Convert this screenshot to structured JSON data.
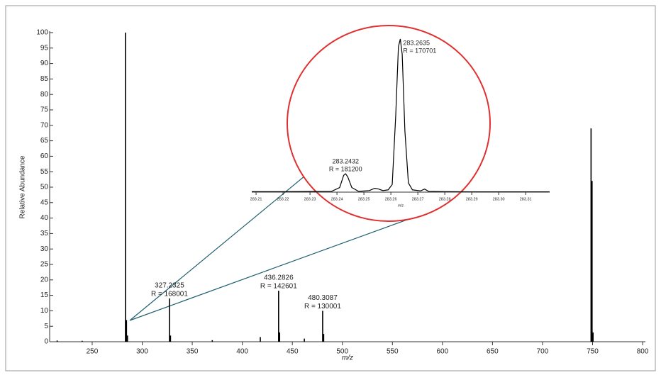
{
  "chart_data": [
    {
      "type": "stick",
      "xlabel": "m/z",
      "ylabel": "Relative Abundance",
      "xlim": [
        207.5,
        802.8
      ],
      "ylim": [
        0,
        100
      ],
      "xticks": [
        250,
        300,
        350,
        400,
        450,
        500,
        550,
        600,
        650,
        700,
        750,
        800
      ],
      "yticks": [
        0,
        5,
        10,
        15,
        20,
        25,
        30,
        35,
        40,
        45,
        50,
        55,
        60,
        65,
        70,
        75,
        80,
        85,
        90,
        95,
        100
      ],
      "color": "#000000",
      "x": [
        215,
        240,
        283.2635,
        284.27,
        285.27,
        327.2325,
        328.24,
        370,
        418,
        436.2826,
        437.29,
        462,
        480.3087,
        481.31,
        748.5,
        749.5,
        750.5
      ],
      "values": [
        0.4,
        0.3,
        100,
        7,
        2,
        14,
        2,
        0.5,
        1.5,
        16.5,
        3,
        1,
        10,
        2.5,
        69,
        52,
        3
      ],
      "labels": [
        null,
        null,
        null,
        null,
        null,
        [
          "327.2325",
          "R = 168001"
        ],
        null,
        null,
        null,
        [
          "436.2826",
          "R = 142601"
        ],
        null,
        null,
        [
          "480.3087",
          "R = 130001"
        ],
        null,
        null,
        null,
        null
      ]
    },
    {
      "type": "line",
      "xlabel": "m/z",
      "xlim": [
        283.2084,
        283.3189
      ],
      "ylim": [
        0,
        100
      ],
      "xticks": [
        283.21,
        283.22,
        283.23,
        283.24,
        283.25,
        283.26,
        283.27,
        283.28,
        283.29,
        {
          "value": 283.3,
          "label": "283.30"
        },
        283.31
      ],
      "color": "#000000",
      "x": [
        283.2084,
        283.22,
        283.23,
        283.238,
        283.241,
        283.2425,
        283.2432,
        283.244,
        283.2455,
        283.248,
        283.252,
        283.254,
        283.2555,
        283.257,
        283.259,
        283.2605,
        283.2618,
        283.2628,
        283.2635,
        283.2642,
        283.2652,
        283.2665,
        283.268,
        283.271,
        283.2725,
        283.274,
        283.28,
        283.29,
        283.3189
      ],
      "values": [
        0.3,
        0.3,
        0.4,
        0.5,
        3,
        11,
        12,
        10,
        3,
        0.5,
        1,
        2.5,
        2,
        1,
        1.5,
        5,
        50,
        95,
        100,
        90,
        40,
        6,
        1.5,
        0.8,
        2,
        0.5,
        0.3,
        0.2,
        0.2
      ],
      "labels": [
        null,
        null,
        null,
        null,
        null,
        null,
        [
          "283.2432",
          "R = 181200"
        ],
        null,
        null,
        null,
        null,
        null,
        null,
        null,
        null,
        null,
        null,
        null,
        [
          "283.2635",
          "R = 170701"
        ],
        null,
        null,
        null,
        null,
        null,
        null,
        null,
        null,
        null,
        null
      ]
    }
  ]
}
